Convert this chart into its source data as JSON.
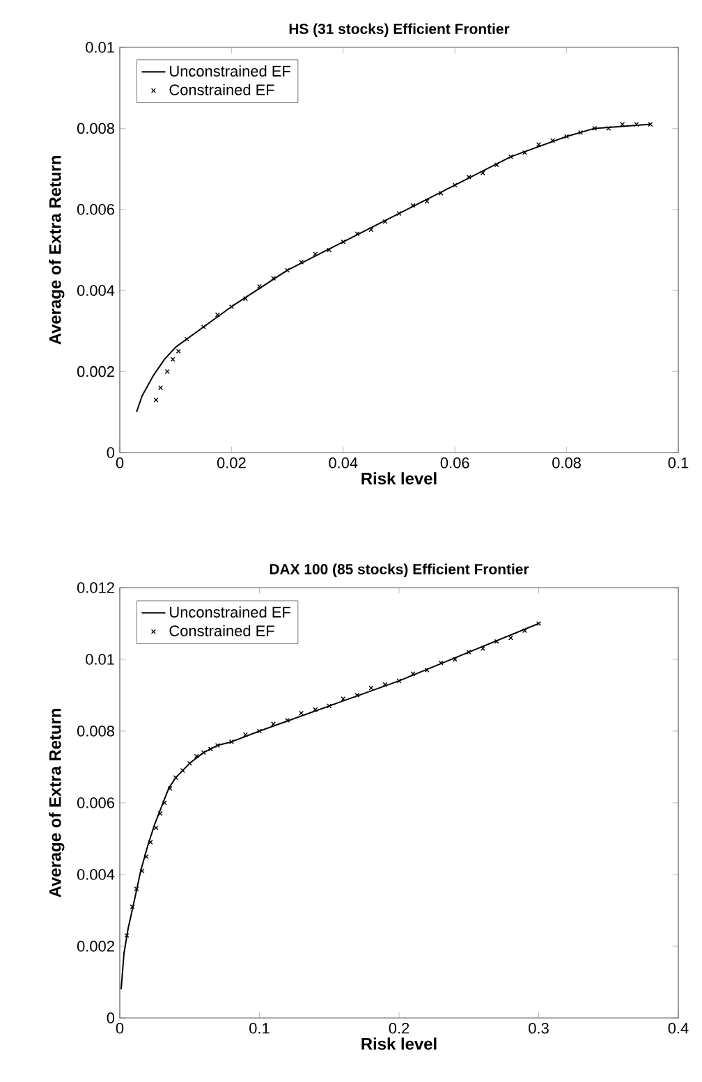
{
  "chart_data": [
    {
      "type": "line",
      "title": "HS (31 stocks) Efficient Frontier",
      "xlabel": "Risk level",
      "ylabel": "Average of Extra Return",
      "xlim": [
        0,
        0.1
      ],
      "ylim": [
        0,
        0.01
      ],
      "xticks": [
        0,
        0.02,
        0.04,
        0.06,
        0.08,
        0.1
      ],
      "yticks": [
        0,
        0.002,
        0.004,
        0.006,
        0.008,
        0.01
      ],
      "legend": "top left",
      "series": [
        {
          "name": "Unconstrained EF",
          "color": "#000000",
          "line_style": "solid",
          "x": [
            0.003,
            0.004,
            0.006,
            0.008,
            0.01,
            0.015,
            0.02,
            0.03,
            0.04,
            0.05,
            0.06,
            0.07,
            0.08,
            0.085,
            0.09,
            0.095
          ],
          "values": [
            0.001,
            0.0014,
            0.0019,
            0.0023,
            0.0026,
            0.0031,
            0.0036,
            0.0045,
            0.0052,
            0.0059,
            0.0066,
            0.0073,
            0.0078,
            0.008,
            0.00805,
            0.0081
          ]
        },
        {
          "name": "Constrained EF",
          "type": "scatter",
          "color": "#000000",
          "marker": "cross",
          "x": [
            0.0065,
            0.0073,
            0.0085,
            0.0095,
            0.0105,
            0.012,
            0.015,
            0.0175,
            0.02,
            0.0225,
            0.025,
            0.0275,
            0.03,
            0.0325,
            0.035,
            0.0375,
            0.04,
            0.0425,
            0.045,
            0.0475,
            0.05,
            0.0525,
            0.055,
            0.0575,
            0.06,
            0.0625,
            0.065,
            0.0675,
            0.07,
            0.0725,
            0.075,
            0.0775,
            0.08,
            0.0825,
            0.085,
            0.0875,
            0.09,
            0.0925,
            0.095
          ],
          "values": [
            0.0013,
            0.0016,
            0.002,
            0.0023,
            0.0025,
            0.0028,
            0.0031,
            0.0034,
            0.0036,
            0.0038,
            0.0041,
            0.0043,
            0.0045,
            0.0047,
            0.0049,
            0.005,
            0.0052,
            0.0054,
            0.0055,
            0.0057,
            0.0059,
            0.0061,
            0.0062,
            0.0064,
            0.0066,
            0.0068,
            0.0069,
            0.0071,
            0.0073,
            0.0074,
            0.0076,
            0.0077,
            0.0078,
            0.0079,
            0.008,
            0.008,
            0.0081,
            0.0081,
            0.0081
          ]
        }
      ]
    },
    {
      "type": "line",
      "title": "DAX 100 (85 stocks) Efficient Frontier",
      "xlabel": "Risk level",
      "ylabel": "Average of Extra Return",
      "xlim": [
        0,
        0.4
      ],
      "ylim": [
        0,
        0.012
      ],
      "xticks": [
        0,
        0.1,
        0.2,
        0.3,
        0.4
      ],
      "yticks": [
        0,
        0.002,
        0.004,
        0.006,
        0.008,
        0.01,
        0.012
      ],
      "legend": "top left",
      "series": [
        {
          "name": "Unconstrained EF",
          "color": "#000000",
          "line_style": "solid",
          "x": [
            0.001,
            0.003,
            0.006,
            0.01,
            0.015,
            0.02,
            0.025,
            0.03,
            0.035,
            0.04,
            0.05,
            0.06,
            0.07,
            0.08,
            0.1,
            0.15,
            0.2,
            0.25,
            0.3
          ],
          "values": [
            0.0008,
            0.0018,
            0.0025,
            0.0032,
            0.0041,
            0.0048,
            0.0054,
            0.0059,
            0.0064,
            0.0067,
            0.0071,
            0.0074,
            0.0076,
            0.0077,
            0.008,
            0.0087,
            0.0094,
            0.0102,
            0.011
          ]
        },
        {
          "name": "Constrained EF",
          "type": "scatter",
          "color": "#000000",
          "marker": "cross",
          "x": [
            0.005,
            0.009,
            0.012,
            0.016,
            0.019,
            0.022,
            0.026,
            0.029,
            0.032,
            0.036,
            0.04,
            0.045,
            0.05,
            0.055,
            0.06,
            0.065,
            0.07,
            0.08,
            0.09,
            0.1,
            0.11,
            0.12,
            0.13,
            0.14,
            0.15,
            0.16,
            0.17,
            0.18,
            0.19,
            0.2,
            0.21,
            0.22,
            0.23,
            0.24,
            0.25,
            0.26,
            0.27,
            0.28,
            0.29,
            0.3
          ],
          "values": [
            0.0023,
            0.0031,
            0.0036,
            0.0041,
            0.0045,
            0.0049,
            0.0053,
            0.0057,
            0.006,
            0.0064,
            0.0067,
            0.0069,
            0.0071,
            0.0073,
            0.0074,
            0.0075,
            0.0076,
            0.0077,
            0.0079,
            0.008,
            0.0082,
            0.0083,
            0.0085,
            0.0086,
            0.0087,
            0.0089,
            0.009,
            0.0092,
            0.0093,
            0.0094,
            0.0096,
            0.0097,
            0.0099,
            0.01,
            0.0102,
            0.0103,
            0.0105,
            0.0106,
            0.0108,
            0.011
          ]
        }
      ]
    }
  ]
}
